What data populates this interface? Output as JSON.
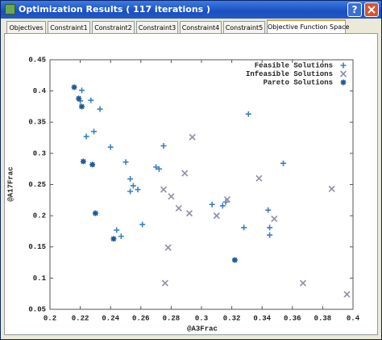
{
  "window": {
    "title": "Optimization Results ( 117 iterations )",
    "help_button": "?",
    "tabs": [
      "Objectives",
      "Constraint1",
      "Constraint2",
      "Constraint3",
      "Constraint4",
      "Constraint5",
      "Objective Function Space"
    ]
  },
  "chart_data": {
    "type": "scatter",
    "x_label": "@A3Frac",
    "y_label": "@A17Frac",
    "xlim": [
      0.2,
      0.4
    ],
    "xticks": [
      0.2,
      0.22,
      0.24,
      0.26,
      0.28,
      0.3,
      0.32,
      0.34,
      0.36,
      0.38,
      0.4
    ],
    "ylim": [
      0.05,
      0.45
    ],
    "yticks": [
      0.05,
      0.1,
      0.15,
      0.2,
      0.25,
      0.3,
      0.35,
      0.4,
      0.45
    ],
    "legend": "upper right",
    "series": [
      {
        "name": "Feasible Solutions",
        "color": "#3a80c4",
        "marker": "plus",
        "x": [
          0.221,
          0.22,
          0.227,
          0.233,
          0.224,
          0.229,
          0.24,
          0.25,
          0.253,
          0.255,
          0.258,
          0.253,
          0.27,
          0.275,
          0.272,
          0.261,
          0.244,
          0.247,
          0.307,
          0.314,
          0.316,
          0.328,
          0.331,
          0.344,
          0.345,
          0.345,
          0.354
        ],
        "values": [
          0.401,
          0.384,
          0.385,
          0.371,
          0.327,
          0.335,
          0.31,
          0.286,
          0.259,
          0.248,
          0.242,
          0.239,
          0.278,
          0.312,
          0.275,
          0.186,
          0.177,
          0.167,
          0.218,
          0.216,
          0.222,
          0.181,
          0.363,
          0.209,
          0.181,
          0.169,
          0.284
        ]
      },
      {
        "name": "Infeasible Solutions",
        "color": "#8e8ea8",
        "marker": "x",
        "x": [
          0.275,
          0.28,
          0.285,
          0.289,
          0.294,
          0.292,
          0.278,
          0.276,
          0.31,
          0.317,
          0.338,
          0.367,
          0.386,
          0.396,
          0.348
        ],
        "values": [
          0.242,
          0.231,
          0.212,
          0.268,
          0.326,
          0.204,
          0.149,
          0.092,
          0.2,
          0.226,
          0.26,
          0.092,
          0.243,
          0.074,
          0.195
        ]
      },
      {
        "name": "Pareto Solutions",
        "color": "#1f5a94",
        "marker": "star",
        "x": [
          0.216,
          0.219,
          0.221,
          0.222,
          0.228,
          0.23,
          0.242,
          0.322
        ],
        "values": [
          0.406,
          0.388,
          0.375,
          0.287,
          0.282,
          0.204,
          0.163,
          0.129
        ]
      }
    ]
  }
}
